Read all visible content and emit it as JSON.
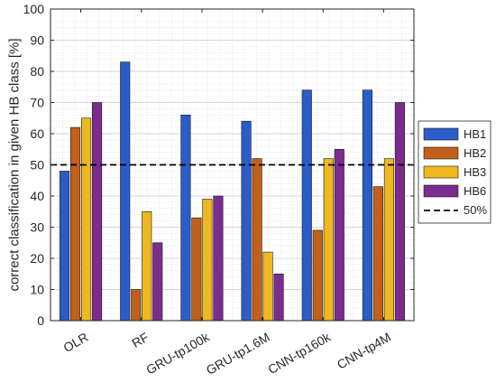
{
  "chart_data": {
    "type": "bar",
    "title": "",
    "xlabel": "",
    "ylabel": "correct classification in given HB class [%]",
    "ylim": [
      0,
      100
    ],
    "yticks": [
      0,
      10,
      20,
      30,
      40,
      50,
      60,
      70,
      80,
      90,
      100
    ],
    "categories": [
      "OLR",
      "RF",
      "GRU-tp100k",
      "GRU-tp1.6M",
      "CNN-tp160k",
      "CNN-tp4M"
    ],
    "series": [
      {
        "name": "HB1",
        "color": "#2b5cc8",
        "values": [
          48,
          83,
          66,
          64,
          74,
          74
        ]
      },
      {
        "name": "HB2",
        "color": "#c0601a",
        "values": [
          62,
          10,
          33,
          52,
          29,
          43
        ]
      },
      {
        "name": "HB3",
        "color": "#eeb820",
        "values": [
          65,
          35,
          39,
          22,
          52,
          52
        ]
      },
      {
        "name": "HB6",
        "color": "#7b2c8e",
        "values": [
          70,
          25,
          40,
          15,
          55,
          70
        ]
      }
    ],
    "reference_line": {
      "name": "50%",
      "value": 50,
      "style": "dashed",
      "color": "#000000"
    },
    "grid": true,
    "minor_grid": true,
    "legend_position": "right"
  }
}
